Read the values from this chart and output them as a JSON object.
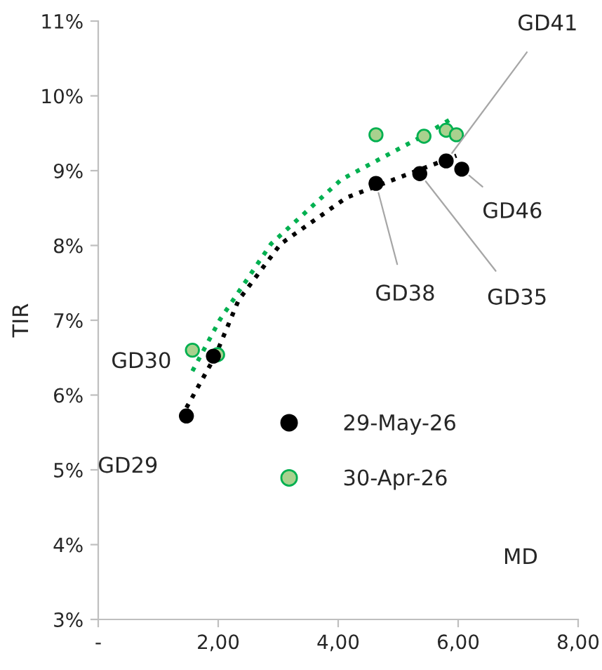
{
  "chart_data": {
    "type": "scatter",
    "xlabel": "MD",
    "ylabel": "TIR",
    "series": [
      {
        "name": "29-May-26",
        "color": "#000000",
        "marker": "circle",
        "x": [
          1.47,
          1.92,
          4.63,
          5.36,
          5.8,
          6.06
        ],
        "values": [
          5.72,
          6.52,
          8.83,
          8.96,
          9.13,
          9.02
        ]
      },
      {
        "name": "30-Apr-26",
        "color": "#a9d18e",
        "marker": "circle",
        "x": [
          1.57,
          1.99,
          4.63,
          5.43,
          5.8,
          5.97
        ],
        "values": [
          6.6,
          6.54,
          9.48,
          9.46,
          9.54,
          9.48
        ]
      },
      {
        "type": "line",
        "color": "#000000",
        "line_style": "dotted",
        "marker": "none",
        "x": [
          1.47,
          1.95,
          2.34,
          3.04,
          4.14,
          5.97
        ],
        "values": [
          5.83,
          6.52,
          7.27,
          8.02,
          8.64,
          9.2
        ]
      },
      {
        "type": "line",
        "color": "#00b050",
        "line_style": "dotted",
        "marker": "none",
        "x": [
          1.57,
          2.03,
          2.88,
          4.05,
          5.38,
          5.92
        ],
        "values": [
          6.32,
          7.01,
          8.02,
          8.88,
          9.45,
          9.71
        ]
      }
    ],
    "annotations": [
      {
        "text": "GD41",
        "x": 5.8,
        "y": 9.13
      },
      {
        "text": "GD46",
        "x": 6.06,
        "y": 9.02
      },
      {
        "text": "GD38",
        "x": 4.63,
        "y": 8.83
      },
      {
        "text": "GD35",
        "x": 5.36,
        "y": 8.96
      },
      {
        "text": "GD30",
        "x": 1.92,
        "y": 6.52
      },
      {
        "text": "GD29",
        "x": 1.47,
        "y": 5.72
      }
    ],
    "xlim": [
      0,
      8
    ],
    "xticks": [
      {
        "value": 0,
        "label": "-"
      },
      {
        "value": 2,
        "label": "2,00"
      },
      {
        "value": 4,
        "label": "4,00"
      },
      {
        "value": 6,
        "label": "6,00"
      },
      {
        "value": 8,
        "label": "8,00"
      }
    ],
    "ylim": [
      3,
      11
    ],
    "yticks": [
      {
        "value": 3,
        "label": "3%"
      },
      {
        "value": 4,
        "label": "4%"
      },
      {
        "value": 5,
        "label": "5%"
      },
      {
        "value": 6,
        "label": "6%"
      },
      {
        "value": 7,
        "label": "7%"
      },
      {
        "value": 8,
        "label": "8%"
      },
      {
        "value": 9,
        "label": "9%"
      },
      {
        "value": 10,
        "label": "10%"
      },
      {
        "value": 11,
        "label": "11%"
      }
    ],
    "grid": false,
    "legend": "center"
  }
}
